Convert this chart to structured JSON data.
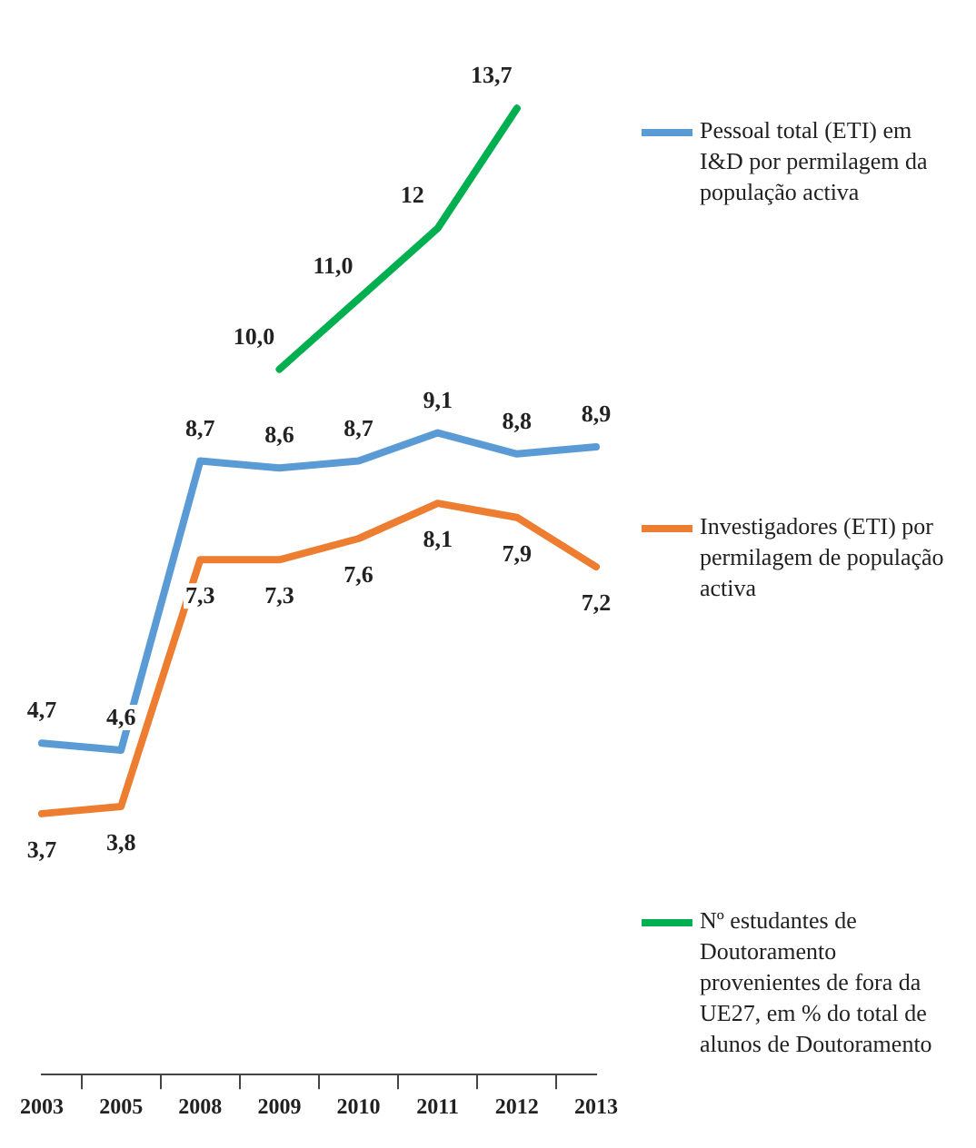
{
  "chart_data": {
    "type": "line",
    "categories": [
      "2003",
      "2005",
      "2008",
      "2009",
      "2010",
      "2011",
      "2012",
      "2013"
    ],
    "legend": "right",
    "grid": false,
    "marker": "none",
    "line_style": "solid",
    "tick_labels": "x",
    "series": [
      {
        "name": "Pessoal total (ETI) em I&D por permilagem da população activa",
        "color": "#5b9bd5",
        "values": [
          4.7,
          4.6,
          8.7,
          8.6,
          8.7,
          9.1,
          8.8,
          8.9
        ],
        "value_labels": [
          "4,7",
          "4,6",
          "8,7",
          "8,6",
          "8,7",
          "9,1",
          "8,8",
          "8,9"
        ]
      },
      {
        "name": "Investigadores (ETI) por permilagem de população activa",
        "color": "#ed7d31",
        "values": [
          3.7,
          3.8,
          7.3,
          7.3,
          7.6,
          8.1,
          7.9,
          7.2
        ],
        "value_labels": [
          "3,7",
          "3,8",
          "7,3",
          "7,3",
          "7,6",
          "8,1",
          "7,9",
          "7,2"
        ]
      },
      {
        "name": "Nº estudantes de Doutoramento provenientes de fora da UE27, em % do total de alunos de Doutoramento",
        "color": "#00b050",
        "values": [
          null,
          null,
          null,
          10.0,
          11.0,
          12,
          13.7,
          null
        ],
        "value_labels": [
          null,
          null,
          null,
          "10,0",
          "11,0",
          "12",
          "13,7",
          null
        ]
      }
    ]
  }
}
